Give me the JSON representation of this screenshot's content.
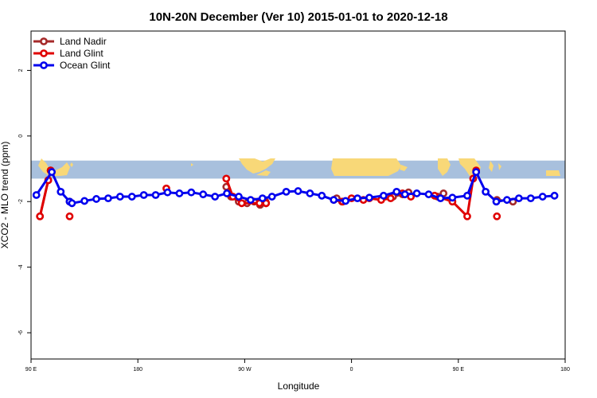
{
  "chart_data": {
    "type": "line",
    "title": "10N-20N December (Ver 10)   2015-01-01 to 2020-12-18",
    "xlabel": "Longitude",
    "ylabel": "XCO2 - MLO trend (ppm)",
    "xlim": [
      90,
      540
    ],
    "ylim": [
      -6.8,
      3.2
    ],
    "x_ticks": [
      {
        "value": 90,
        "label": "90 E"
      },
      {
        "value": 180,
        "label": "180"
      },
      {
        "value": 270,
        "label": "90 W"
      },
      {
        "value": 360,
        "label": "0"
      },
      {
        "value": 450,
        "label": "90 E"
      },
      {
        "value": 540,
        "label": "180"
      }
    ],
    "y_ticks": [
      {
        "value": 2,
        "label": "2"
      },
      {
        "value": 0,
        "label": "0"
      },
      {
        "value": -2,
        "label": "-2"
      },
      {
        "value": -4,
        "label": "-4"
      },
      {
        "value": -6,
        "label": "-6"
      }
    ],
    "legend_position": "top-left",
    "map_band": {
      "y_top": -0.75,
      "y_bottom": -1.3,
      "ocean_color": "#a8c0dd",
      "land_color": "#f8d878"
    },
    "series": [
      {
        "name": "Land Nadir",
        "color": "#a52a2a",
        "segments": [
          [
            [
              97.5,
              -2.45
            ],
            [
              104.5,
              -1.35
            ],
            [
              106.5,
              -1.05
            ]
          ],
          [
            [
              122.5,
              -2.0
            ]
          ],
          [
            [
              254.5,
              -1.55
            ],
            [
              258.5,
              -1.85
            ],
            [
              265,
              -2.0
            ],
            [
              272,
              -2.05
            ],
            [
              278,
              -2.0
            ],
            [
              283,
              -2.1
            ],
            [
              287.5,
              -2.0
            ],
            [
              288,
              -2.05
            ]
          ],
          [
            [
              347.5,
              -1.9
            ],
            [
              352,
              -2.0
            ]
          ],
          [
            [
              395,
              -1.85
            ],
            [
              403,
              -1.78
            ],
            [
              408,
              -1.72
            ]
          ],
          [
            [
              432.5,
              -1.85
            ],
            [
              437.5,
              -1.75
            ]
          ],
          [
            [
              482.5,
              -1.95
            ],
            [
              496,
              -2.0
            ]
          ]
        ]
      },
      {
        "name": "Land Glint",
        "color": "#e00000",
        "segments": [
          [
            [
              97.5,
              -2.45
            ],
            [
              104.5,
              -1.35
            ],
            [
              106.5,
              -1.05
            ]
          ],
          [
            [
              122.5,
              -2.45
            ]
          ],
          [
            [
              204,
              -1.6
            ]
          ],
          [
            [
              254.5,
              -1.3
            ],
            [
              260,
              -1.85
            ],
            [
              267.5,
              -2.05
            ],
            [
              282.5,
              -2.05
            ],
            [
              288,
              -2.05
            ]
          ],
          [
            [
              345,
              -1.95
            ],
            [
              352.5,
              -2.0
            ],
            [
              360,
              -1.9
            ],
            [
              370,
              -1.95
            ],
            [
              375,
              -1.9
            ],
            [
              385,
              -1.95
            ],
            [
              393,
              -1.9
            ]
          ],
          [
            [
              403,
              -1.75
            ],
            [
              410,
              -1.85
            ]
          ],
          [
            [
              430,
              -1.82
            ],
            [
              445,
              -2.0
            ],
            [
              457.5,
              -2.45
            ],
            [
              462.5,
              -1.3
            ],
            [
              465,
              -1.05
            ]
          ],
          [
            [
              482.5,
              -2.45
            ]
          ]
        ]
      },
      {
        "name": "Ocean Glint",
        "color": "#0000ee",
        "segments": [
          [
            [
              94.5,
              -1.8
            ],
            [
              107.5,
              -1.1
            ],
            [
              115,
              -1.7
            ],
            [
              122.5,
              -2.0
            ],
            [
              124.5,
              -2.05
            ],
            [
              135,
              -1.98
            ],
            [
              145,
              -1.92
            ],
            [
              155,
              -1.9
            ],
            [
              165,
              -1.85
            ],
            [
              175,
              -1.85
            ],
            [
              185,
              -1.8
            ],
            [
              195,
              -1.8
            ],
            [
              205,
              -1.72
            ],
            [
              215,
              -1.75
            ],
            [
              225,
              -1.72
            ],
            [
              235,
              -1.78
            ],
            [
              245,
              -1.85
            ],
            [
              255,
              -1.75
            ],
            [
              265,
              -1.85
            ],
            [
              275,
              -1.95
            ],
            [
              285,
              -1.9
            ],
            [
              293,
              -1.85
            ],
            [
              305,
              -1.7
            ],
            [
              315,
              -1.68
            ],
            [
              325,
              -1.75
            ],
            [
              335,
              -1.82
            ],
            [
              345,
              -1.95
            ],
            [
              355,
              -1.98
            ],
            [
              365,
              -1.9
            ],
            [
              375,
              -1.88
            ],
            [
              387,
              -1.82
            ],
            [
              398,
              -1.7
            ],
            [
              405,
              -1.78
            ],
            [
              415,
              -1.75
            ],
            [
              425,
              -1.78
            ],
            [
              435,
              -1.9
            ],
            [
              445,
              -1.88
            ],
            [
              457.5,
              -1.82
            ],
            [
              465,
              -1.1
            ],
            [
              473,
              -1.7
            ],
            [
              482,
              -2.0
            ],
            [
              491,
              -1.95
            ],
            [
              501,
              -1.9
            ],
            [
              511,
              -1.9
            ],
            [
              521,
              -1.85
            ],
            [
              531,
              -1.82
            ]
          ]
        ]
      }
    ]
  }
}
